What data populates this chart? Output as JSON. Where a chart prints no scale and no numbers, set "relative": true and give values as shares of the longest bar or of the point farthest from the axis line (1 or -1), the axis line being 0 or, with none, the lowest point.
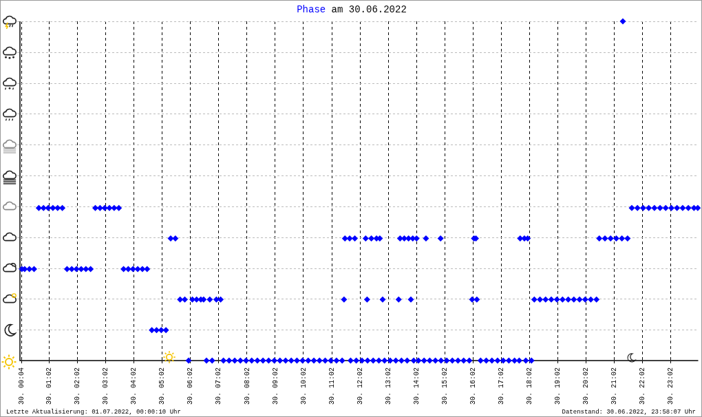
{
  "chart_data": {
    "type": "scatter",
    "title": "Phase am 30.06.2022",
    "relative": true,
    "marker": "diamond",
    "grid": true,
    "legend": false,
    "xlim": [
      "2022-06-30T00:00",
      "2022-07-01T00:00"
    ],
    "xticks": [
      {
        "value": "2022-06-30T00:04",
        "label": "30. 00:04"
      },
      {
        "value": "2022-06-30T01:02",
        "label": "30. 01:02"
      },
      {
        "value": "2022-06-30T02:02",
        "label": "30. 02:02"
      },
      {
        "value": "2022-06-30T03:02",
        "label": "30. 03:02"
      },
      {
        "value": "2022-06-30T04:02",
        "label": "30. 04:02"
      },
      {
        "value": "2022-06-30T05:02",
        "label": "30. 05:02"
      },
      {
        "value": "2022-06-30T06:02",
        "label": "30. 06:02"
      },
      {
        "value": "2022-06-30T07:02",
        "label": "30. 07:02"
      },
      {
        "value": "2022-06-30T08:02",
        "label": "30. 08:02"
      },
      {
        "value": "2022-06-30T09:02",
        "label": "30. 09:02"
      },
      {
        "value": "2022-06-30T10:02",
        "label": "30. 10:02"
      },
      {
        "value": "2022-06-30T11:02",
        "label": "30. 11:02"
      },
      {
        "value": "2022-06-30T12:02",
        "label": "30. 12:02"
      },
      {
        "value": "2022-06-30T13:02",
        "label": "30. 13:02"
      },
      {
        "value": "2022-06-30T14:02",
        "label": "30. 14:02"
      },
      {
        "value": "2022-06-30T15:02",
        "label": "30. 15:02"
      },
      {
        "value": "2022-06-30T16:02",
        "label": "30. 16:02"
      },
      {
        "value": "2022-06-30T17:02",
        "label": "30. 17:02"
      },
      {
        "value": "2022-06-30T18:02",
        "label": "30. 18:02"
      },
      {
        "value": "2022-06-30T19:02",
        "label": "30. 19:02"
      },
      {
        "value": "2022-06-30T20:02",
        "label": "30. 20:02"
      },
      {
        "value": "2022-06-30T21:02",
        "label": "30. 21:02"
      },
      {
        "value": "2022-06-30T22:02",
        "label": "30. 22:02"
      },
      {
        "value": "2022-06-30T23:02",
        "label": "30. 23:02"
      }
    ],
    "annotations": [
      "Letzte Aktualisierung: 01.07.2022, 00:00:10 Uhr",
      "Datenstand: 30.06.2022, 23:58:07 Uhr"
    ],
    "series": [
      {
        "color": "#0000ff",
        "x": [
          "2022-06-30T00:04",
          "2022-06-30T00:10",
          "2022-06-30T00:20",
          "2022-06-30T00:30",
          "2022-06-30T00:40",
          "2022-06-30T00:50",
          "2022-06-30T01:00",
          "2022-06-30T01:10",
          "2022-06-30T01:20",
          "2022-06-30T01:30",
          "2022-06-30T01:40",
          "2022-06-30T01:50",
          "2022-06-30T02:00",
          "2022-06-30T02:10",
          "2022-06-30T02:20",
          "2022-06-30T02:30",
          "2022-06-30T02:40",
          "2022-06-30T02:50",
          "2022-06-30T03:00",
          "2022-06-30T03:10",
          "2022-06-30T03:20",
          "2022-06-30T03:30",
          "2022-06-30T03:40",
          "2022-06-30T03:50",
          "2022-06-30T04:00",
          "2022-06-30T04:10",
          "2022-06-30T04:20",
          "2022-06-30T04:30",
          "2022-06-30T04:40",
          "2022-06-30T04:50",
          "2022-06-30T05:00",
          "2022-06-30T05:10",
          "2022-06-30T05:20",
          "2022-06-30T05:30",
          "2022-06-30T05:40",
          "2022-06-30T05:50",
          "2022-06-30T05:58",
          "2022-06-30T06:06",
          "2022-06-30T06:15",
          "2022-06-30T06:24",
          "2022-06-30T06:30",
          "2022-06-30T06:36",
          "2022-06-30T06:43",
          "2022-06-30T06:48",
          "2022-06-30T06:57",
          "2022-06-30T07:06",
          "2022-06-30T07:12",
          "2022-06-30T07:24",
          "2022-06-30T07:36",
          "2022-06-30T07:48",
          "2022-06-30T08:00",
          "2022-06-30T08:12",
          "2022-06-30T08:24",
          "2022-06-30T08:36",
          "2022-06-30T08:48",
          "2022-06-30T09:00",
          "2022-06-30T09:12",
          "2022-06-30T09:24",
          "2022-06-30T09:36",
          "2022-06-30T09:48",
          "2022-06-30T10:00",
          "2022-06-30T10:12",
          "2022-06-30T10:24",
          "2022-06-30T10:36",
          "2022-06-30T10:48",
          "2022-06-30T11:00",
          "2022-06-30T11:12",
          "2022-06-30T11:24",
          "2022-06-30T11:28",
          "2022-06-30T11:30",
          "2022-06-30T11:40",
          "2022-06-30T11:51",
          "2022-06-30T11:42",
          "2022-06-30T11:54",
          "2022-06-30T12:06",
          "2022-06-30T12:14",
          "2022-06-30T12:17",
          "2022-06-30T12:18",
          "2022-06-30T12:26",
          "2022-06-30T12:30",
          "2022-06-30T12:37",
          "2022-06-30T12:42",
          "2022-06-30T12:44",
          "2022-06-30T12:50",
          "2022-06-30T12:54",
          "2022-06-30T13:06",
          "2022-06-30T13:18",
          "2022-06-30T13:24",
          "2022-06-30T13:27",
          "2022-06-30T13:30",
          "2022-06-30T13:36",
          "2022-06-30T13:42",
          "2022-06-30T13:45",
          "2022-06-30T13:50",
          "2022-06-30T13:54",
          "2022-06-30T13:56",
          "2022-06-30T14:02",
          "2022-06-30T14:06",
          "2022-06-30T14:18",
          "2022-06-30T14:22",
          "2022-06-30T14:30",
          "2022-06-30T14:42",
          "2022-06-30T14:53",
          "2022-06-30T14:54",
          "2022-06-30T15:06",
          "2022-06-30T15:18",
          "2022-06-30T15:30",
          "2022-06-30T15:42",
          "2022-06-30T15:54",
          "2022-06-30T16:00",
          "2022-06-30T16:04",
          "2022-06-30T16:08",
          "2022-06-30T16:10",
          "2022-06-30T16:18",
          "2022-06-30T16:30",
          "2022-06-30T16:42",
          "2022-06-30T16:54",
          "2022-06-30T17:06",
          "2022-06-30T17:18",
          "2022-06-30T17:30",
          "2022-06-30T17:40",
          "2022-06-30T17:42",
          "2022-06-30T17:51",
          "2022-06-30T17:54",
          "2022-06-30T17:58",
          "2022-06-30T18:06",
          "2022-06-30T18:12",
          "2022-06-30T18:24",
          "2022-06-30T18:36",
          "2022-06-30T18:48",
          "2022-06-30T19:00",
          "2022-06-30T19:12",
          "2022-06-30T19:24",
          "2022-06-30T19:36",
          "2022-06-30T19:48",
          "2022-06-30T20:00",
          "2022-06-30T20:12",
          "2022-06-30T20:24",
          "2022-06-30T20:30",
          "2022-06-30T20:42",
          "2022-06-30T20:54",
          "2022-06-30T21:06",
          "2022-06-30T21:18",
          "2022-06-30T21:20",
          "2022-06-30T21:30",
          "2022-06-30T21:39",
          "2022-06-30T21:51",
          "2022-06-30T22:03",
          "2022-06-30T22:15",
          "2022-06-30T22:27",
          "2022-06-30T22:39",
          "2022-06-30T22:51",
          "2022-06-30T23:03",
          "2022-06-30T23:15",
          "2022-06-30T23:27",
          "2022-06-30T23:39",
          "2022-06-30T23:51",
          "2022-06-30T23:59"
        ],
        "values": [
          0.27,
          0.27,
          0.27,
          0.27,
          0.45,
          0.45,
          0.45,
          0.45,
          0.45,
          0.45,
          0.27,
          0.27,
          0.27,
          0.27,
          0.27,
          0.27,
          0.45,
          0.45,
          0.45,
          0.45,
          0.45,
          0.45,
          0.27,
          0.27,
          0.27,
          0.27,
          0.27,
          0.27,
          0.09,
          0.09,
          0.09,
          0.09,
          0.36,
          0.36,
          0.18,
          0.18,
          0,
          0.18,
          0.18,
          0.18,
          0.18,
          0,
          0.18,
          0,
          0.18,
          0.18,
          0,
          0,
          0,
          0,
          0,
          0,
          0,
          0,
          0,
          0,
          0,
          0,
          0,
          0,
          0,
          0,
          0,
          0,
          0,
          0,
          0,
          0,
          0.18,
          0.36,
          0.36,
          0.36,
          0,
          0,
          0,
          0.36,
          0.18,
          0,
          0.36,
          0,
          0.36,
          0,
          0.36,
          0.18,
          0,
          0,
          0,
          0.18,
          0.36,
          0,
          0.36,
          0,
          0.36,
          0.18,
          0.36,
          0,
          0.36,
          0,
          0,
          0.36,
          0,
          0,
          0.36,
          0,
          0,
          0,
          0,
          0,
          0,
          0.18,
          0.36,
          0.36,
          0.18,
          0,
          0,
          0,
          0,
          0,
          0,
          0,
          0,
          0.36,
          0.36,
          0,
          0.36,
          0,
          0.18,
          0.18,
          0.18,
          0.18,
          0.18,
          0.18,
          0.18,
          0.18,
          0.18,
          0.18,
          0.18,
          0.18,
          0.36,
          0.36,
          0.36,
          0.36,
          0.36,
          1,
          0.36,
          0.45,
          0.45,
          0.45,
          0.45,
          0.45,
          0.45,
          0.45,
          0.45,
          0.45,
          0.45,
          0.45,
          0.45,
          0.45
        ]
      }
    ]
  }
}
